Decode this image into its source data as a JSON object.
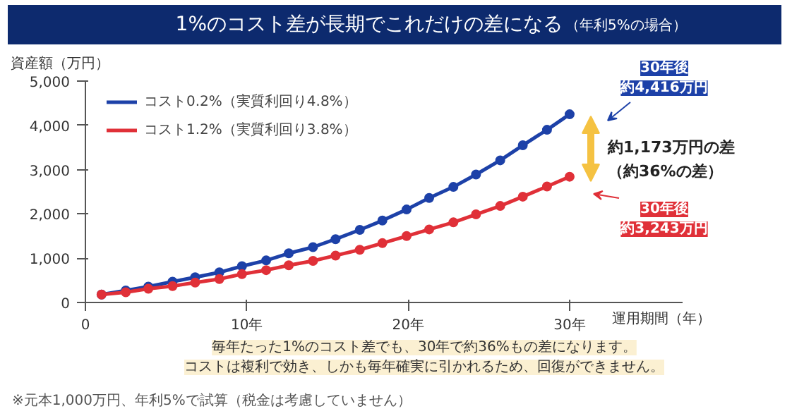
{
  "chart_data": {
    "type": "line",
    "title": "1%のコスト差が長期でこれだけの差になる",
    "subtitle": "（年利5%の場合）",
    "xlabel": "運用期間（年）",
    "ylabel": "資産額（万円）",
    "xlim": [
      0,
      37
    ],
    "ylim": [
      0,
      5000
    ],
    "xticks": [
      0,
      {
        "value": 10,
        "label": "10年"
      },
      {
        "value": 20,
        "label": "20年"
      },
      {
        "value": 30,
        "label": "30年"
      }
    ],
    "yticks": [
      0,
      {
        "value": 1000,
        "label": "1,000"
      },
      {
        "value": 2000,
        "label": "2,000"
      },
      {
        "value": 3000,
        "label": "3,000"
      },
      {
        "value": 4000,
        "label": "4,000"
      },
      {
        "value": 5000,
        "label": "5,000"
      }
    ],
    "x": [
      1,
      2.5,
      3.9,
      5.4,
      6.8,
      8.3,
      9.7,
      11.2,
      12.6,
      14.1,
      15.5,
      17,
      18.4,
      19.9,
      21.3,
      22.8,
      24.2,
      25.7,
      27.1,
      28.6,
      30
    ],
    "series": [
      {
        "name": "コスト0.2%（実質利回り4.8%）",
        "color": "#1d41a8",
        "values": [
          180,
          270,
          360,
          470,
          570,
          680,
          820,
          950,
          1110,
          1250,
          1430,
          1640,
          1850,
          2100,
          2360,
          2610,
          2890,
          3210,
          3550,
          3900,
          4250
        ]
      },
      {
        "name": "コスト1.2%（実質利回り3.8%）",
        "color": "#e03038",
        "values": [
          180,
          230,
          310,
          370,
          450,
          530,
          640,
          730,
          840,
          940,
          1060,
          1190,
          1340,
          1500,
          1650,
          1810,
          1990,
          2180,
          2390,
          2620,
          2840
        ]
      }
    ],
    "annotations": [
      "30年後",
      "約4,416万円",
      "30年後",
      "約3,243万円",
      "約1,173万円の差",
      "（約36%の差）",
      "毎年たった1%のコスト差でも、30年で約36%もの差になります。",
      "コストは複利で効き、しかも毎年確実に引かれるため、回復ができません。",
      "※元本1,000万円、年利5%で試算（税金は考慮していません）"
    ],
    "legend": "top left",
    "marker": "circle",
    "line_style": "solid",
    "grid": false
  }
}
